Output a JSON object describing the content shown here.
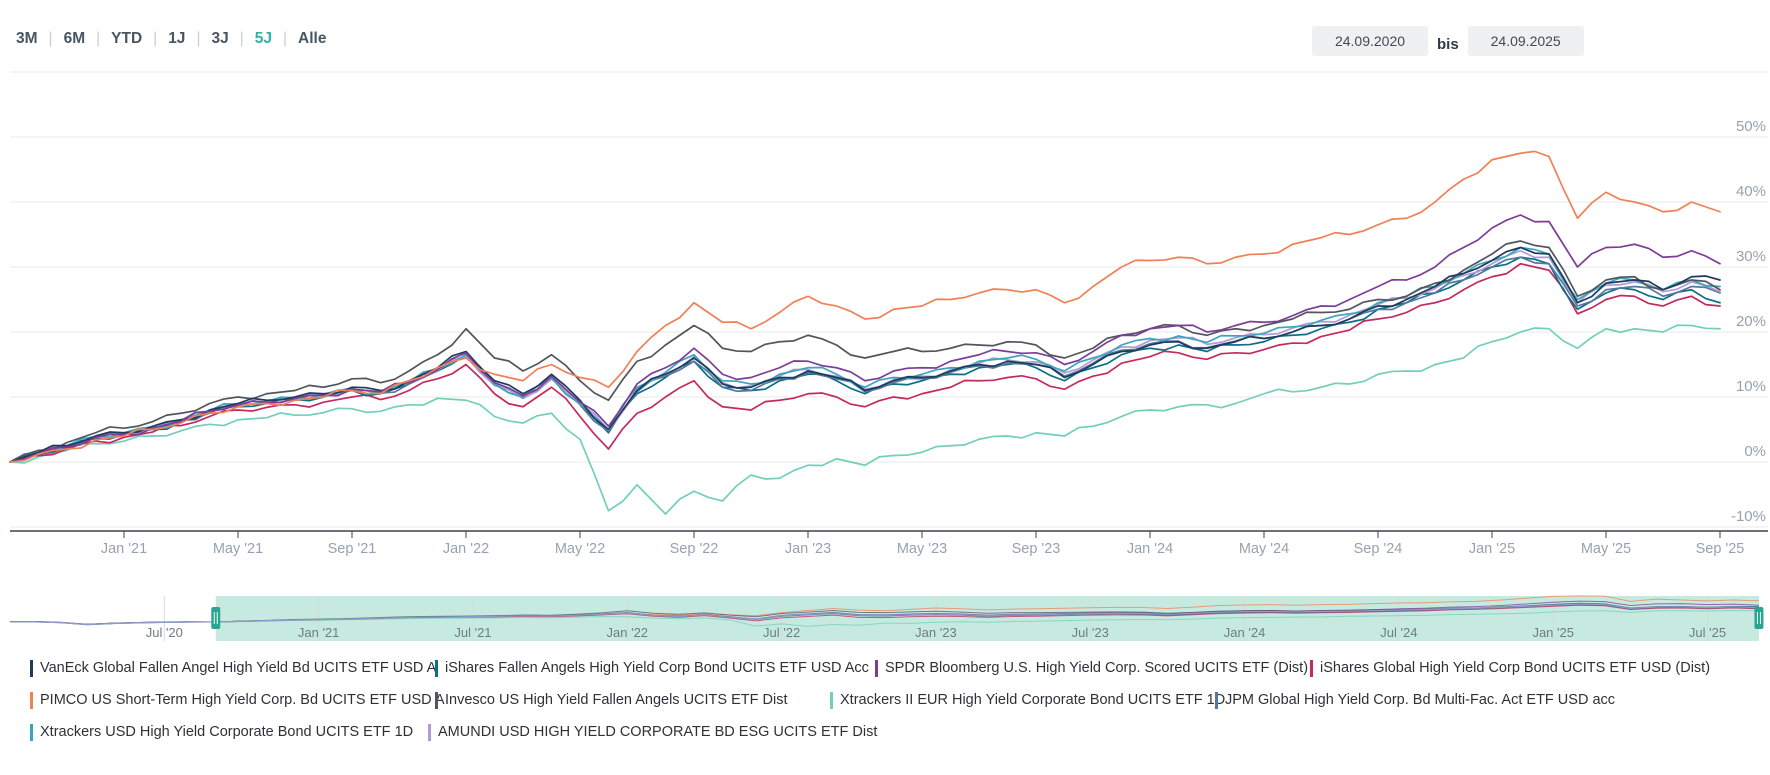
{
  "toolbar": {
    "ranges": [
      {
        "label": "3M",
        "active": false
      },
      {
        "label": "6M",
        "active": false
      },
      {
        "label": "YTD",
        "active": false
      },
      {
        "label": "1J",
        "active": false
      },
      {
        "label": "3J",
        "active": false
      },
      {
        "label": "5J",
        "active": true
      },
      {
        "label": "Alle",
        "active": false
      }
    ],
    "date_from": "24.09.2020",
    "date_separator": "bis",
    "date_to": "24.09.2025"
  },
  "colors": {
    "accent": "#2eb3a3",
    "grid": "#e8e8ea",
    "axis": "#3d434d",
    "tick_label": "#98a2ae",
    "nav_selection": "#c7eae0",
    "nav_handle": "#2aa690",
    "nav_label": "#6f7b85",
    "nav_grid": "#d5dbd8"
  },
  "chart_data": {
    "type": "line",
    "title": "",
    "x_unit": "month",
    "x_start_label": "Sep 2020",
    "x_tick_labels": [
      "Jan '21",
      "May '21",
      "Sep '21",
      "Jan '22",
      "May '22",
      "Sep '22",
      "Jan '23",
      "May '23",
      "Sep '23",
      "Jan '24",
      "May '24",
      "Sep '24",
      "Jan '25",
      "May '25",
      "Sep '25"
    ],
    "x_tick_month_index": [
      4,
      8,
      12,
      16,
      20,
      24,
      28,
      32,
      36,
      40,
      44,
      48,
      52,
      56,
      60
    ],
    "y_ticks_pct": [
      -10,
      0,
      10,
      20,
      30,
      40,
      50
    ],
    "ylim": [
      -12,
      62
    ],
    "grid": true,
    "legend_position": "bottom",
    "series": [
      {
        "name": "VanEck Global Fallen Angel High Yield Bd UCITS ETF USD A",
        "color": "#1e3a5c",
        "values": [
          0,
          1.5,
          2.5,
          4,
          4.5,
          5.5,
          6.5,
          8,
          9,
          9.5,
          10,
          10.5,
          11.5,
          11,
          12.5,
          14.5,
          17,
          12.5,
          10.5,
          13.5,
          9.5,
          5,
          11,
          13.5,
          16,
          12,
          11.5,
          13,
          14,
          13,
          11,
          12.5,
          13,
          14,
          15,
          15.5,
          15,
          13,
          15,
          17,
          18,
          18.5,
          17.5,
          18.5,
          19,
          20,
          21,
          22,
          24,
          25,
          27,
          29,
          31,
          33,
          32,
          24.5,
          27.5,
          28,
          26.5,
          28.5,
          28
        ]
      },
      {
        "name": "iShares Fallen Angels High Yield Corp Bond UCITS ETF USD Acc",
        "color": "#0d6f87",
        "values": [
          0,
          1.2,
          2.2,
          3.6,
          4.2,
          5,
          6.2,
          7.5,
          8.5,
          9,
          9.6,
          10,
          11,
          10.5,
          12,
          14,
          16.5,
          12,
          10,
          13,
          9,
          4.5,
          10.5,
          13,
          15.5,
          11.5,
          11,
          12.5,
          13.5,
          12.5,
          10.5,
          12,
          12.5,
          13.5,
          14.5,
          15,
          14.5,
          12.5,
          14.5,
          16.5,
          17.5,
          18,
          17,
          18,
          18.5,
          19.5,
          20.5,
          21.5,
          23.5,
          24.5,
          26,
          28,
          30,
          31.5,
          30.5,
          23.5,
          26,
          26.5,
          25,
          26.5,
          24.5
        ]
      },
      {
        "name": "SPDR Bloomberg U.S. High Yield Corp. Scored UCITS ETF (Dist)",
        "color": "#7d3c98",
        "values": [
          0,
          1.3,
          2.3,
          3.8,
          4.3,
          5.2,
          6.3,
          7.8,
          8.8,
          9.2,
          9.8,
          10.3,
          11.2,
          10.8,
          12.2,
          14.2,
          16.8,
          12.2,
          10.2,
          13.2,
          9.2,
          5.5,
          12,
          14.5,
          17.5,
          13.5,
          13,
          14.5,
          15.5,
          14.5,
          12.5,
          14,
          14.5,
          15.5,
          16.5,
          17,
          16.8,
          15,
          17,
          19.5,
          20.5,
          21,
          20,
          21,
          21.5,
          22.5,
          24,
          25,
          27,
          28,
          30,
          33,
          36,
          38,
          37,
          30,
          33,
          33.5,
          31.5,
          32.5,
          30.5
        ]
      },
      {
        "name": "iShares Global High Yield Corp Bond UCITS ETF USD (Dist)",
        "color": "#c32a60",
        "values": [
          0,
          1,
          2,
          3.2,
          3.8,
          4.6,
          5.6,
          7,
          8,
          8.4,
          8.8,
          9.2,
          10,
          9.6,
          11,
          12.8,
          15,
          10.5,
          8.5,
          11.5,
          7,
          2,
          7.5,
          10,
          12.5,
          8.5,
          8,
          9.5,
          10.5,
          10,
          8.5,
          10,
          10.5,
          11.5,
          12.5,
          13,
          12.8,
          11.2,
          13.2,
          15.2,
          16.2,
          16.8,
          15.8,
          16.8,
          17.3,
          18.3,
          19.3,
          20.3,
          22,
          23,
          24.5,
          26.5,
          28.5,
          30.5,
          29.5,
          22.8,
          25,
          25.5,
          24,
          25.5,
          24
        ]
      },
      {
        "name": "PIMCO US Short-Term High Yield Corp. Bd UCITS ETF USD A",
        "color": "#f08055",
        "values": [
          0,
          1.2,
          2,
          3.4,
          4,
          5,
          6,
          7.5,
          8.5,
          9,
          9.5,
          10,
          11,
          10.5,
          12.5,
          14.5,
          16,
          13.5,
          12.5,
          15,
          13,
          11.5,
          17,
          21,
          24.5,
          21.5,
          20.5,
          23,
          25.5,
          24,
          22,
          23.5,
          24,
          25,
          26,
          26.5,
          26.5,
          24.5,
          27,
          30,
          31,
          31.5,
          30.5,
          31.5,
          32,
          33.5,
          34.5,
          35,
          36.5,
          37.5,
          40,
          43.5,
          46.5,
          47.5,
          47,
          37.5,
          41.5,
          40,
          38.5,
          40,
          38.5
        ]
      },
      {
        "name": "Invesco US High Yield Fallen Angels UCITS ETF Dist",
        "color": "#52555e",
        "values": [
          0,
          1.8,
          3,
          4.5,
          5.2,
          6.2,
          7.5,
          9,
          10,
          10.5,
          11,
          11.5,
          12.8,
          12.2,
          14,
          16.5,
          20.5,
          16,
          14,
          16.5,
          12.5,
          9.5,
          15.5,
          18,
          21,
          17.5,
          17,
          18.5,
          19.5,
          18,
          16,
          17,
          17,
          17.5,
          18,
          18.5,
          18,
          16,
          17.5,
          19.5,
          20.5,
          21,
          19.5,
          20.5,
          21,
          22,
          23,
          23.5,
          25,
          25.5,
          27.5,
          29.5,
          32,
          34,
          33,
          25.5,
          28,
          28.5,
          26.5,
          28,
          26.5
        ]
      },
      {
        "name": "Xtrackers II EUR High Yield Corporate Bond UCITS ETF 1D",
        "color": "#72cfbc",
        "values": [
          0,
          0.8,
          1.8,
          2.8,
          3.2,
          4,
          4.8,
          5.8,
          6.5,
          6.8,
          7.2,
          7.6,
          8.2,
          7.8,
          8.8,
          9.8,
          9.5,
          7,
          6,
          7.5,
          3.5,
          -7.5,
          -3.5,
          -8,
          -4.5,
          -6,
          -2,
          -2.5,
          -0.5,
          0.5,
          -0.5,
          1,
          1.5,
          2.5,
          3.5,
          4,
          4.5,
          4,
          5.5,
          7,
          8,
          8.5,
          8.8,
          9,
          10.5,
          10.8,
          11.5,
          12,
          13.5,
          14,
          15,
          16,
          18.5,
          20,
          20.5,
          17.5,
          20.5,
          20.5,
          20,
          21,
          20.5
        ]
      },
      {
        "name": "JPM Global High Yield Corp. Bd Multi-Fac. Act ETF USD acc",
        "color": "#54789f",
        "values": [
          0,
          1.4,
          2.4,
          3.7,
          4.4,
          5.3,
          6.4,
          7.7,
          8.7,
          9.1,
          9.7,
          10.2,
          11.1,
          10.6,
          12,
          14,
          16.2,
          11.8,
          9.8,
          12.8,
          8.8,
          4.8,
          10.8,
          13.2,
          15.5,
          11.5,
          11,
          12.8,
          13.8,
          12.8,
          10.8,
          12.2,
          12.8,
          13.8,
          14.8,
          15.2,
          15,
          13.2,
          15.2,
          17.2,
          18.2,
          18.6,
          17.6,
          18.6,
          19,
          20,
          21,
          22,
          23.5,
          24.5,
          26,
          28,
          30,
          31.5,
          30.5,
          24,
          26.5,
          27,
          25.5,
          27,
          26
        ]
      },
      {
        "name": "Xtrackers USD High Yield Corporate Bond UCITS ETF 1D",
        "color": "#3aa6bd",
        "values": [
          0,
          1.4,
          2.5,
          3.9,
          4.5,
          5.4,
          6.5,
          7.9,
          8.9,
          9.3,
          9.9,
          10.4,
          11.3,
          10.8,
          12.3,
          14.3,
          16.5,
          12,
          10,
          13,
          9,
          5,
          11.5,
          13.8,
          16.5,
          12.5,
          12,
          13.5,
          14.5,
          13.5,
          11.5,
          13,
          13.5,
          14.5,
          15.5,
          16,
          15.8,
          14,
          16,
          18,
          19,
          19.4,
          18.4,
          19.4,
          19.8,
          20.8,
          21.8,
          22.8,
          24.5,
          25.5,
          27,
          29,
          31,
          33,
          32,
          25,
          27.5,
          28,
          26.5,
          28,
          27
        ]
      },
      {
        "name": "AMUNDI USD HIGH YIELD CORPORATE BD ESG UCITS ETF Dist",
        "color": "#b49ad4",
        "values": [
          0,
          1.3,
          2.4,
          3.8,
          4.4,
          5.3,
          6.4,
          7.8,
          8.8,
          9.2,
          9.8,
          10.3,
          11.2,
          10.7,
          12.2,
          14.1,
          16.3,
          11.9,
          9.9,
          12.9,
          8.9,
          4.9,
          11.2,
          13.5,
          16.2,
          12.2,
          11.7,
          13.2,
          14.2,
          13.2,
          11.2,
          12.7,
          13.2,
          14.2,
          15.2,
          15.7,
          15.4,
          13.7,
          15.7,
          17.7,
          18.7,
          19.1,
          18.1,
          19.1,
          19.6,
          20.6,
          21.6,
          22.6,
          24.2,
          25.2,
          26.7,
          28.7,
          30.5,
          32.5,
          31.5,
          24.5,
          27.2,
          27.7,
          26.2,
          27.7,
          26.2
        ]
      }
    ],
    "navigator": {
      "labels": [
        "Jul '20",
        "Jan '21",
        "Jul '21",
        "Jan '22",
        "Jul '22",
        "Jan '23",
        "Jul '23",
        "Jan '24",
        "Jul '24",
        "Jan '25",
        "Jul '25"
      ],
      "label_month_index": [
        6,
        12,
        18,
        24,
        30,
        36,
        42,
        48,
        54,
        60,
        66
      ],
      "pre_values": [
        0.3,
        0.5,
        -1,
        -4.5,
        -2.5,
        -1.2,
        -0.4,
        0.1
      ],
      "selected_range_months": [
        8,
        68
      ]
    }
  },
  "legend": {
    "rows": [
      4,
      4,
      2
    ]
  }
}
